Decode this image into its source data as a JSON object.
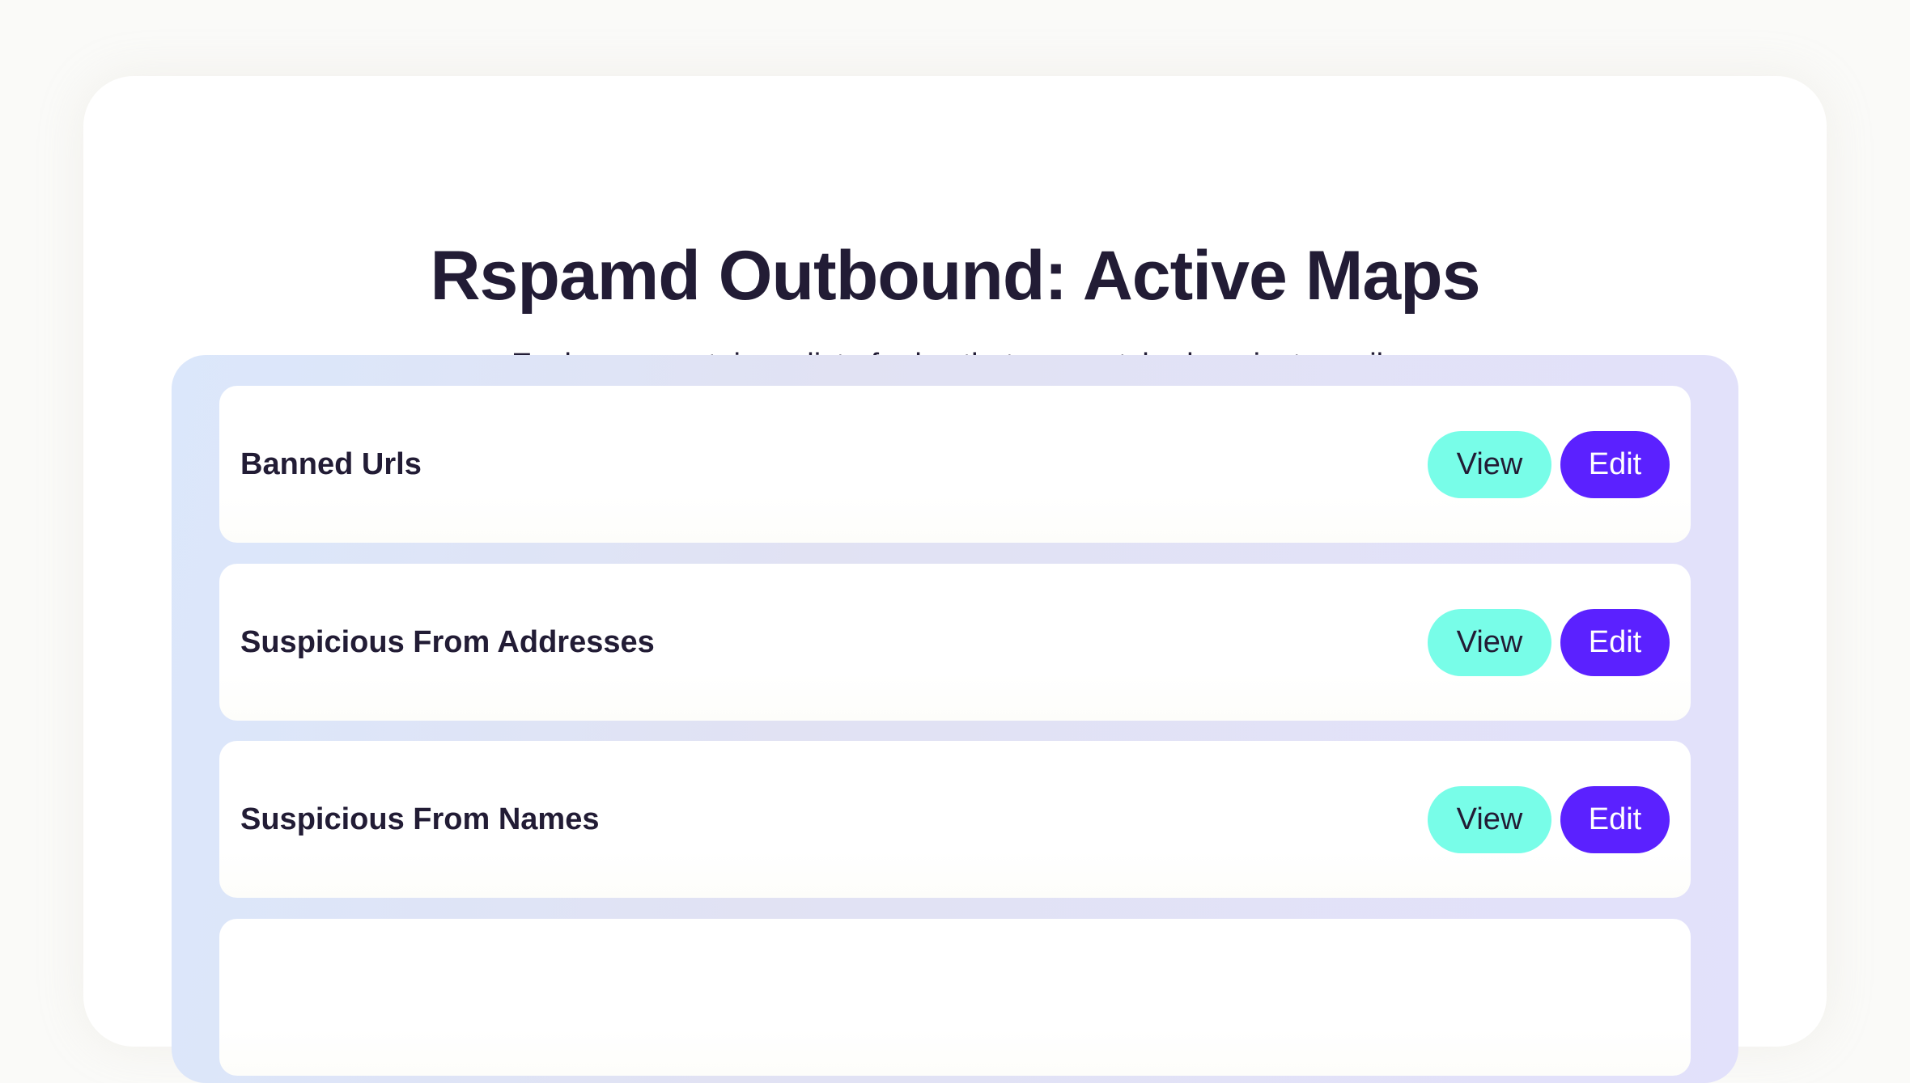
{
  "header": {
    "title": "Rspamd Outbound: Active Maps",
    "subtitle": "Each map contains a list of rules that are matched against emails"
  },
  "maps": [
    {
      "name": "Banned Urls",
      "view_label": "View",
      "edit_label": "Edit"
    },
    {
      "name": "Suspicious From Addresses",
      "view_label": "View",
      "edit_label": "Edit"
    },
    {
      "name": "Suspicious From Names",
      "view_label": "View",
      "edit_label": "Edit"
    },
    {
      "name": "",
      "view_label": "",
      "edit_label": ""
    }
  ],
  "colors": {
    "view_button": "#78fde8",
    "edit_button": "#5b21ff",
    "text": "#221c35"
  }
}
